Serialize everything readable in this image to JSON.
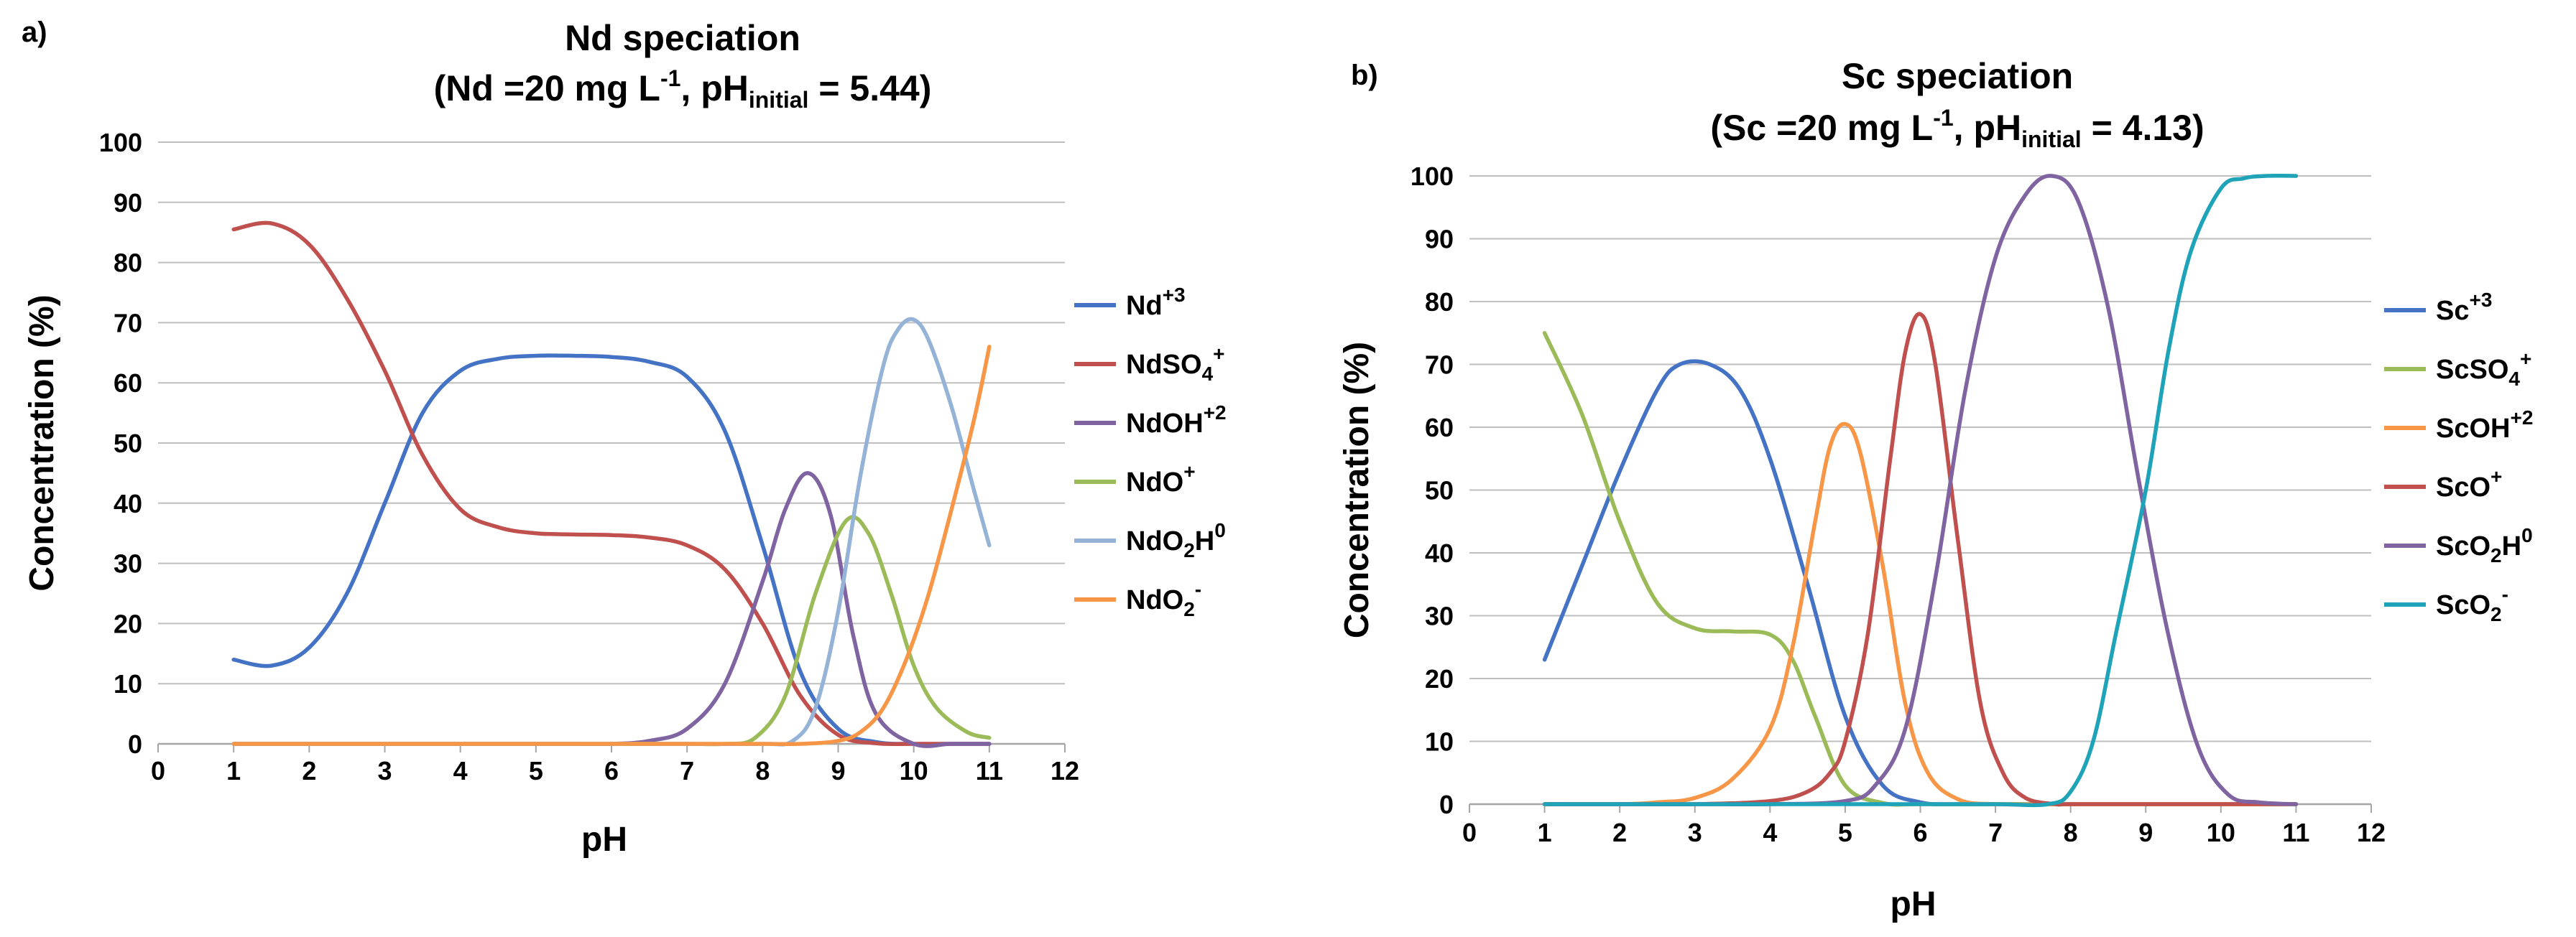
{
  "chart_data": [
    {
      "type": "line",
      "panel": "a)",
      "title": "Nd speciation",
      "subtitle": {
        "prefix": "(Nd =20 mg L",
        "exp": "-1",
        "mid": ", pH",
        "sub": "initial",
        "suffix": " = 5.44)"
      },
      "xlabel": "pH",
      "ylabel": "Concentration (%)",
      "xlim": [
        0,
        12
      ],
      "ylim": [
        0,
        100
      ],
      "xticks": [
        "0",
        "1",
        "2",
        "3",
        "4",
        "5",
        "6",
        "7",
        "8",
        "9",
        "10",
        "11",
        "12"
      ],
      "yticks": [
        "0",
        "10",
        "20",
        "30",
        "40",
        "50",
        "60",
        "70",
        "80",
        "90",
        "100"
      ],
      "grid": true,
      "legend_position": "right",
      "series": [
        {
          "name": "Nd+3",
          "label_base": "Nd",
          "label_sub": "",
          "label_sup": "+3",
          "color": "#4472C4",
          "x": [
            1,
            1.5,
            2,
            2.5,
            3,
            3.5,
            4,
            4.5,
            5,
            5.5,
            6,
            6.5,
            7,
            7.5,
            8,
            8.5,
            9,
            9.5,
            10,
            10.5,
            11
          ],
          "y": [
            14,
            13,
            16,
            25,
            40,
            55,
            62,
            64,
            64.5,
            64.5,
            64.3,
            63.5,
            61,
            52,
            33,
            12,
            2.5,
            0.3,
            0,
            0,
            0
          ]
        },
        {
          "name": "NdSO4+",
          "label_base": "NdSO",
          "label_sub": "4",
          "label_sup": "+",
          "color": "#C0504D",
          "x": [
            1,
            1.5,
            2,
            2.5,
            3,
            3.5,
            4,
            4.5,
            5,
            5.5,
            6,
            6.5,
            7,
            7.5,
            8,
            8.5,
            9,
            9.5,
            10,
            10.5,
            11
          ],
          "y": [
            85.5,
            86.5,
            83,
            74,
            62,
            48,
            39,
            36,
            35,
            34.8,
            34.7,
            34.3,
            33,
            29,
            20,
            8,
            1.5,
            0.1,
            0,
            0,
            0
          ]
        },
        {
          "name": "NdOH+2",
          "label_base": "NdOH",
          "label_sub": "",
          "label_sup": "+2",
          "color": "#8064A2",
          "x": [
            1,
            2,
            3,
            4,
            5,
            5.5,
            6,
            6.5,
            7,
            7.5,
            8,
            8.3,
            8.6,
            8.9,
            9.2,
            9.5,
            10,
            10.5,
            11
          ],
          "y": [
            0,
            0,
            0,
            0,
            0,
            0,
            0,
            0.5,
            2.5,
            10,
            27,
            39,
            45,
            38,
            18,
            5,
            0,
            0,
            0
          ]
        },
        {
          "name": "NdO+",
          "label_base": "NdO",
          "label_sub": "",
          "label_sup": "+",
          "color": "#9BBB59",
          "x": [
            1,
            2,
            3,
            4,
            5,
            6,
            7,
            7.5,
            7.9,
            8.3,
            8.7,
            9.1,
            9.4,
            9.7,
            10,
            10.3,
            10.7,
            11
          ],
          "y": [
            0,
            0,
            0,
            0,
            0,
            0,
            0,
            0,
            1,
            8,
            25,
            37,
            35,
            25,
            13,
            6,
            2,
            1
          ]
        },
        {
          "name": "NdO2H0",
          "label_base": "NdO",
          "label_sub": "2",
          "label_sup": "",
          "label_tail": "H",
          "label_tail_sup": "0",
          "color": "#95B3D7",
          "x": [
            1,
            2,
            3,
            4,
            5,
            6,
            7,
            8,
            8.4,
            8.7,
            9,
            9.3,
            9.6,
            9.8,
            10,
            10.2,
            10.5,
            10.8,
            11
          ],
          "y": [
            0,
            0,
            0,
            0,
            0,
            0,
            0,
            0,
            0.5,
            6,
            22,
            45,
            63,
            69,
            70.5,
            67,
            56,
            42,
            33
          ]
        },
        {
          "name": "NdO2-",
          "label_base": "NdO",
          "label_sub": "2",
          "label_sup": "-",
          "color": "#F79646",
          "x": [
            1,
            2,
            3,
            4,
            5,
            6,
            7,
            8,
            8.5,
            9,
            9.3,
            9.6,
            9.9,
            10.2,
            10.5,
            10.8,
            11
          ],
          "y": [
            0,
            0,
            0,
            0,
            0,
            0,
            0,
            0,
            0,
            0.5,
            2,
            6,
            14,
            25,
            39,
            54,
            66
          ]
        }
      ]
    },
    {
      "type": "line",
      "panel": "b)",
      "title": "Sc speciation",
      "subtitle": {
        "prefix": "(Sc =20 mg L",
        "exp": "-1",
        "mid": ", pH",
        "sub": "initial",
        "suffix": " = 4.13)"
      },
      "xlabel": "pH",
      "ylabel": "Concentration (%)",
      "xlim": [
        0,
        12
      ],
      "ylim": [
        0,
        100
      ],
      "xticks": [
        "0",
        "1",
        "2",
        "3",
        "4",
        "5",
        "6",
        "7",
        "8",
        "9",
        "10",
        "11",
        "12"
      ],
      "yticks": [
        "0",
        "10",
        "20",
        "30",
        "40",
        "50",
        "60",
        "70",
        "80",
        "90",
        "100"
      ],
      "grid": true,
      "legend_position": "right",
      "series": [
        {
          "name": "Sc+3",
          "label_base": "Sc",
          "label_sub": "",
          "label_sup": "+3",
          "color": "#4472C4",
          "x": [
            1,
            1.5,
            2,
            2.5,
            2.8,
            3.2,
            3.6,
            4,
            4.5,
            5,
            5.5,
            6,
            6.5,
            7,
            8,
            9,
            10,
            11
          ],
          "y": [
            23,
            38,
            53,
            66,
            70,
            70,
            66,
            55,
            35,
            14,
            3,
            0.3,
            0,
            0,
            0,
            0,
            0,
            0
          ]
        },
        {
          "name": "ScSO4+",
          "label_base": "ScSO",
          "label_sub": "4",
          "label_sup": "+",
          "color": "#9BBB59",
          "x": [
            1,
            1.5,
            2,
            2.5,
            3,
            3.5,
            4,
            4.3,
            4.6,
            5,
            5.5,
            6,
            7,
            8,
            9,
            10,
            11
          ],
          "y": [
            75,
            62,
            45,
            32,
            28,
            27.5,
            27,
            23,
            14,
            3,
            0.2,
            0,
            0,
            0,
            0,
            0,
            0
          ]
        },
        {
          "name": "ScOH+2",
          "label_base": "ScOH",
          "label_sub": "",
          "label_sup": "+2",
          "color": "#F79646",
          "x": [
            1,
            2,
            2.5,
            3,
            3.5,
            4,
            4.3,
            4.6,
            4.8,
            5,
            5.2,
            5.5,
            5.8,
            6.1,
            6.5,
            7,
            8,
            9,
            10,
            11
          ],
          "y": [
            0,
            0,
            0.3,
            1,
            4,
            12,
            25,
            45,
            57,
            60.5,
            56,
            38,
            16,
            5,
            0.8,
            0,
            0,
            0,
            0,
            0
          ]
        },
        {
          "name": "ScO+",
          "label_base": "ScO",
          "label_sub": "",
          "label_sup": "+",
          "color": "#C0504D",
          "x": [
            1,
            2,
            3,
            4,
            4.5,
            4.8,
            5,
            5.3,
            5.6,
            5.8,
            6,
            6.2,
            6.5,
            6.8,
            7.1,
            7.4,
            7.8,
            8,
            9,
            10,
            11
          ],
          "y": [
            0,
            0,
            0,
            0.5,
            2,
            5,
            10,
            27,
            55,
            72,
            78,
            70,
            42,
            16,
            5,
            1,
            0,
            0,
            0,
            0,
            0
          ]
        },
        {
          "name": "ScO2H0",
          "label_base": "ScO",
          "label_sub": "2",
          "label_sup": "",
          "label_tail": "H",
          "label_tail_sup": "0",
          "color": "#8064A2",
          "x": [
            1,
            2,
            3,
            4,
            5,
            5.4,
            5.8,
            6.2,
            6.6,
            7,
            7.4,
            7.75,
            8.1,
            8.5,
            8.9,
            9.3,
            9.7,
            10.1,
            10.5,
            11
          ],
          "y": [
            0,
            0,
            0,
            0,
            0.5,
            3,
            12,
            36,
            66,
            87,
            97,
            100,
            96,
            79,
            52,
            27,
            9,
            1.5,
            0.3,
            0
          ]
        },
        {
          "name": "ScO2-",
          "label_base": "ScO",
          "label_sub": "2",
          "label_sup": "-",
          "color": "#1FA3B8",
          "x": [
            1,
            2,
            3,
            4,
            5,
            6,
            7,
            7.7,
            8,
            8.3,
            8.6,
            9,
            9.3,
            9.6,
            10,
            10.3,
            10.6,
            11
          ],
          "y": [
            0,
            0,
            0,
            0,
            0,
            0,
            0,
            0,
            2,
            10,
            27,
            50,
            72,
            88,
            98,
            99.6,
            100,
            100
          ]
        }
      ]
    }
  ]
}
